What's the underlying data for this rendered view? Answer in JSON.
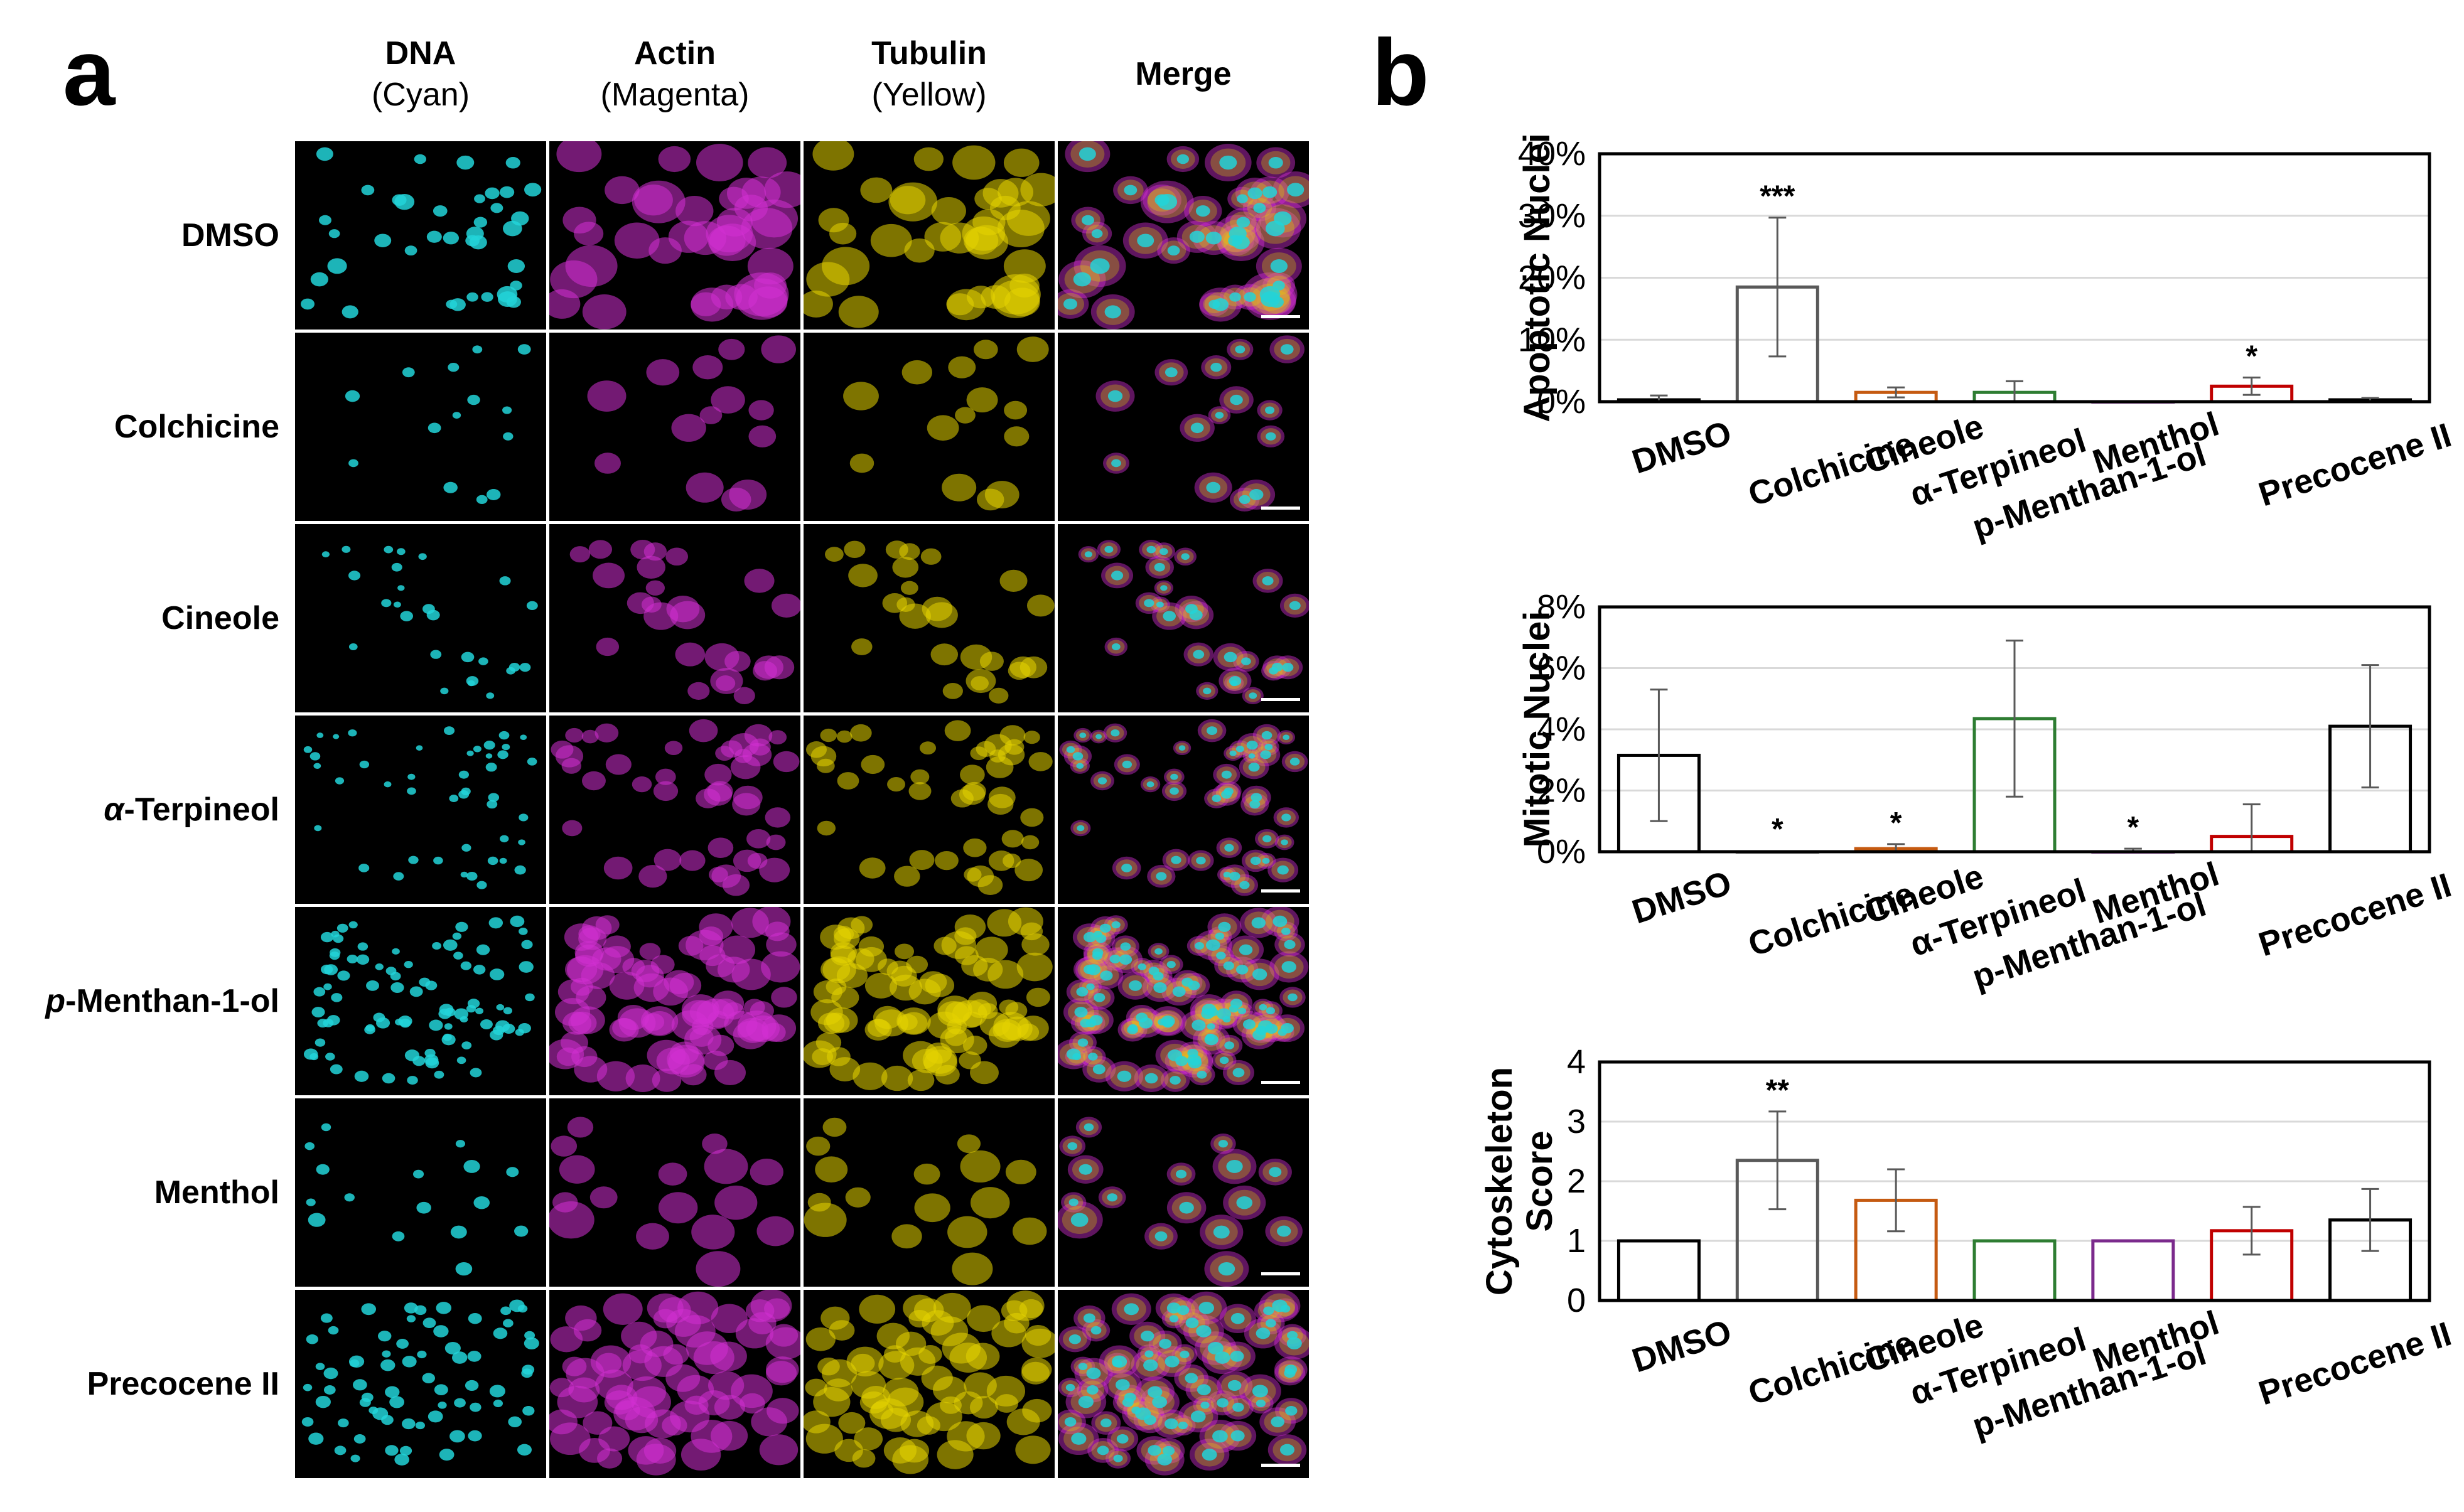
{
  "panel_labels": {
    "a": "a",
    "b": "b"
  },
  "channels": [
    {
      "title": "DNA",
      "subtitle": "(Cyan)",
      "color": "#22d3d8"
    },
    {
      "title": "Actin",
      "subtitle": "(Magenta)",
      "color": "#d22fd2"
    },
    {
      "title": "Tubulin",
      "subtitle": "(Yellow)",
      "color": "#e6d400"
    },
    {
      "title": "Merge",
      "subtitle": "",
      "color": "#ffffff"
    }
  ],
  "treatments": [
    {
      "prefix": "",
      "name": "DMSO"
    },
    {
      "prefix": "",
      "name": "Colchicine"
    },
    {
      "prefix": "",
      "name": "Cineole"
    },
    {
      "prefix": "α",
      "name": "-Terpineol"
    },
    {
      "prefix": "p",
      "name": "-Menthan-1-ol"
    },
    {
      "prefix": "",
      "name": "Menthol"
    },
    {
      "prefix": "",
      "name": "Precocene II"
    }
  ],
  "chart_data": [
    {
      "type": "bar",
      "title": "",
      "ylabel": "Apoptotic Nuclei",
      "ylim": [
        0,
        40
      ],
      "yticks": [
        0,
        10,
        20,
        30,
        40
      ],
      "tick_suffix": "%",
      "categories": [
        "DMSO",
        "Colchicine",
        "Cineole",
        "α-Terpineol",
        "p-Menthan-1-ol",
        "Menthol",
        "Precocene II"
      ],
      "values": [
        0.3,
        18.5,
        1.5,
        1.5,
        0,
        2.5,
        0.3
      ],
      "errors": [
        0.7,
        11.2,
        0.8,
        1.8,
        0,
        1.4,
        0.3
      ],
      "significance": [
        "",
        "***",
        "",
        "",
        "",
        "*",
        ""
      ],
      "bar_colors": [
        "#000000",
        "#595959",
        "#c55a11",
        "#2e7d32",
        "#7b2a8c",
        "#c00000",
        "#000000"
      ],
      "grid": true
    },
    {
      "type": "bar",
      "title": "",
      "ylabel": "Mitotic Nuclei",
      "ylim": [
        0,
        8
      ],
      "yticks": [
        0,
        2,
        4,
        6,
        8
      ],
      "tick_suffix": "%",
      "categories": [
        "DMSO",
        "Colchicine",
        "Cineole",
        "α-Terpineol",
        "p-Menthan-1-ol",
        "Menthol",
        "Precocene II"
      ],
      "values": [
        3.15,
        0,
        0.1,
        4.35,
        0,
        0.5,
        4.1
      ],
      "errors": [
        2.15,
        0,
        0.15,
        2.55,
        0.1,
        1.05,
        2.0
      ],
      "significance": [
        "",
        "*",
        "*",
        "",
        "*",
        "",
        ""
      ],
      "bar_colors": [
        "#000000",
        "#595959",
        "#c55a11",
        "#2e7d32",
        "#7b2a8c",
        "#c00000",
        "#000000"
      ],
      "grid": true
    },
    {
      "type": "bar",
      "title": "",
      "ylabel": "Cytoskeleton Score",
      "ylim": [
        0,
        4
      ],
      "yticks": [
        0,
        1,
        2,
        3,
        4
      ],
      "tick_suffix": "",
      "categories": [
        "DMSO",
        "Colchicine",
        "Cineole",
        "α-Terpineol",
        "p-Menthan-1-ol",
        "Menthol",
        "Precocene II"
      ],
      "values": [
        1.0,
        2.35,
        1.68,
        1.0,
        1.0,
        1.17,
        1.35
      ],
      "errors": [
        0,
        0.82,
        0.52,
        0,
        0,
        0.4,
        0.52
      ],
      "significance": [
        "",
        "**",
        "",
        "",
        "",
        "",
        ""
      ],
      "bar_colors": [
        "#000000",
        "#595959",
        "#c55a11",
        "#2e7d32",
        "#7b2a8c",
        "#c00000",
        "#000000"
      ],
      "grid": true
    }
  ]
}
